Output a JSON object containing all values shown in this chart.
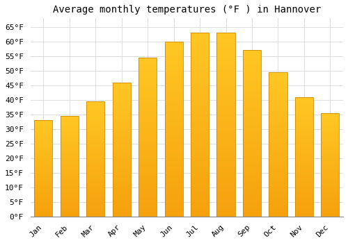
{
  "title": "Average monthly temperatures (°F ) in Hannover",
  "months": [
    "Jan",
    "Feb",
    "Mar",
    "Apr",
    "May",
    "Jun",
    "Jul",
    "Aug",
    "Sep",
    "Oct",
    "Nov",
    "Dec"
  ],
  "values": [
    33,
    34.5,
    39.5,
    46,
    54.5,
    60,
    63,
    63,
    57,
    49.5,
    41,
    35.5
  ],
  "bar_color_top": "#FFC125",
  "bar_color_bottom": "#F5A200",
  "bar_edge_color": "#CC8800",
  "background_color": "#FFFFFF",
  "grid_color": "#DDDDDD",
  "ylim": [
    0,
    68
  ],
  "yticks": [
    0,
    5,
    10,
    15,
    20,
    25,
    30,
    35,
    40,
    45,
    50,
    55,
    60,
    65
  ],
  "title_fontsize": 10,
  "tick_fontsize": 8,
  "font_family": "monospace"
}
